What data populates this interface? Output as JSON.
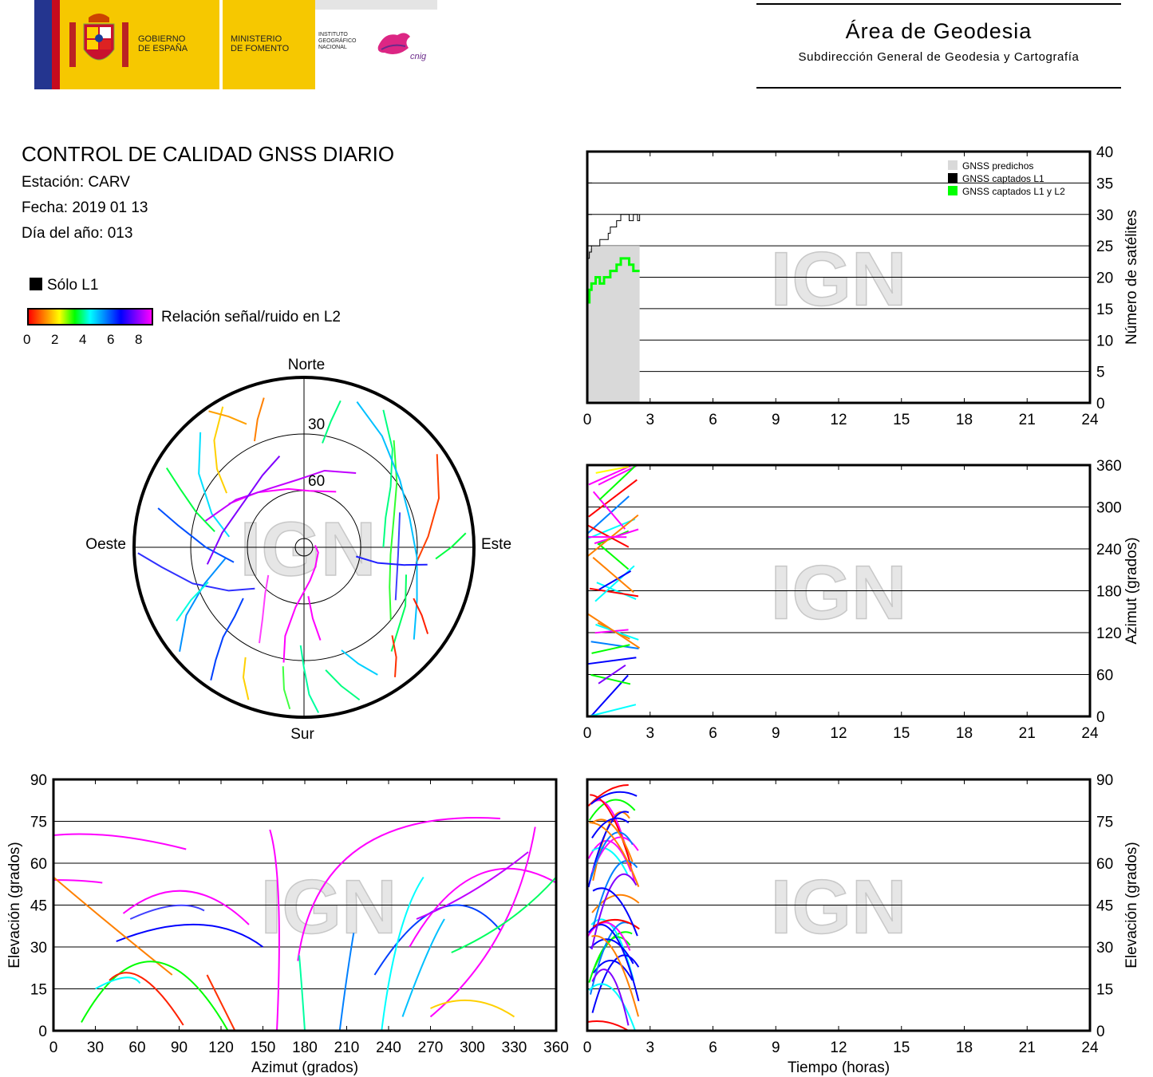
{
  "header": {
    "gobierno": [
      "GOBIERNO",
      "DE ESPAÑA"
    ],
    "ministerio": [
      "MINISTERIO",
      "DE FOMENTO"
    ],
    "instituto": [
      "INSTITUTO",
      "GEOGRÁFICO",
      "NACIONAL"
    ],
    "cnig": "cnig",
    "area_title": "Área de Geodesia",
    "area_subtitle": "Subdirección General de Geodesia y Cartografía"
  },
  "report": {
    "title": "CONTROL DE CALIDAD GNSS DIARIO",
    "station": "Estación: CARV",
    "date": "Fecha: 2019 01 13",
    "doy": "Día del año: 013",
    "legend_l1": "Sólo L1",
    "legend_snr": "Relación señal/ruido en L2",
    "snr_ticks": [
      "0",
      "2",
      "4",
      "6",
      "8"
    ]
  },
  "watermark": "IGN",
  "colors": {
    "predicted": "#d9d9d9",
    "l1": "#000000",
    "l1l2": "#00ff00",
    "snr_scale": [
      "#ff0000",
      "#ff8000",
      "#ffff00",
      "#00ff00",
      "#00ffff",
      "#0080ff",
      "#0000ff",
      "#8000ff",
      "#ff00ff"
    ]
  },
  "chart_data": [
    {
      "id": "satellites",
      "type": "area",
      "ylabel": "Número de satélites",
      "ylim": [
        0,
        40
      ],
      "yticks": [
        0,
        5,
        10,
        15,
        20,
        25,
        30,
        35,
        40
      ],
      "xlim": [
        0,
        24
      ],
      "xticks": [
        0,
        3,
        6,
        9,
        12,
        15,
        18,
        21,
        24
      ],
      "grid": true,
      "legend": "top-right",
      "series": [
        {
          "name": "GNSS predichos",
          "x": [
            0,
            0.3,
            0.6,
            1.0,
            1.4,
            1.8,
            2.2,
            2.5
          ],
          "values": [
            24,
            25,
            25,
            25,
            25,
            25,
            25,
            25
          ]
        },
        {
          "name": "GNSS captados L1",
          "x": [
            0,
            0.1,
            0.2,
            0.4,
            0.6,
            0.8,
            1.0,
            1.1,
            1.2,
            1.4,
            1.6,
            1.8,
            2.0,
            2.2,
            2.4,
            2.5
          ],
          "values": [
            23,
            24,
            25,
            25,
            26,
            26,
            27,
            28,
            28,
            29,
            30,
            30,
            29,
            30,
            29,
            30
          ]
        },
        {
          "name": "GNSS captados L1 y L2",
          "x": [
            0,
            0.1,
            0.2,
            0.4,
            0.6,
            0.8,
            1.0,
            1.1,
            1.2,
            1.4,
            1.6,
            1.8,
            2.0,
            2.2,
            2.4,
            2.5
          ],
          "values": [
            16,
            18,
            19,
            20,
            19,
            20,
            20,
            21,
            21,
            22,
            23,
            23,
            22,
            21,
            21,
            21
          ]
        }
      ]
    },
    {
      "id": "azimuth_time",
      "type": "scatter",
      "ylabel": "Azimut (grados)",
      "ylim": [
        0,
        360
      ],
      "yticks": [
        0,
        60,
        120,
        180,
        240,
        300,
        360
      ],
      "xlim": [
        0,
        24
      ],
      "xticks": [
        0,
        3,
        6,
        9,
        12,
        15,
        18,
        21,
        24
      ],
      "grid": true
    },
    {
      "id": "elevation_time",
      "type": "scatter",
      "ylabel": "Elevación (grados)",
      "ylim": [
        0,
        90
      ],
      "yticks": [
        0,
        15,
        30,
        45,
        60,
        75,
        90
      ],
      "xlim": [
        0,
        24
      ],
      "xlabel": "Tiempo (horas)",
      "xticks": [
        0,
        3,
        6,
        9,
        12,
        15,
        18,
        21,
        24
      ],
      "grid": true
    },
    {
      "id": "elevation_azimuth",
      "type": "scatter",
      "ylabel": "Elevación (grados)",
      "xlabel": "Azimut (grados)",
      "ylim": [
        0,
        90
      ],
      "yticks": [
        0,
        15,
        30,
        45,
        60,
        75,
        90
      ],
      "xlim": [
        0,
        360
      ],
      "xticks": [
        0,
        30,
        60,
        90,
        120,
        150,
        180,
        210,
        240,
        270,
        300,
        330,
        360
      ],
      "grid": true
    },
    {
      "id": "skyplot",
      "type": "scatter",
      "labels": {
        "north": "Norte",
        "south": "Sur",
        "east": "Este",
        "west": "Oeste"
      },
      "rings": [
        "30",
        "60"
      ],
      "tracks": [
        {
          "pts": [
            [
              345,
              8
            ],
            [
              340,
              18
            ],
            [
              335,
              28
            ]
          ],
          "c": "#ff8000"
        },
        {
          "pts": [
            [
              330,
              4
            ],
            [
              320,
              16
            ],
            [
              312,
              28
            ],
            [
              305,
              40
            ]
          ],
          "c": "#ffd000"
        },
        {
          "pts": [
            [
              318,
              8
            ],
            [
              305,
              22
            ],
            [
              290,
              38
            ],
            [
              278,
              50
            ]
          ],
          "c": "#00e0ff"
        },
        {
          "pts": [
            [
              300,
              6
            ],
            [
              295,
              18
            ],
            [
              288,
              30
            ],
            [
              280,
              42
            ]
          ],
          "c": "#00ff40"
        },
        {
          "pts": [
            [
              285,
              10
            ],
            [
              280,
              22
            ],
            [
              270,
              38
            ],
            [
              258,
              52
            ]
          ],
          "c": "#0050ff"
        },
        {
          "pts": [
            [
              230,
              4
            ],
            [
              240,
              18
            ],
            [
              250,
              34
            ],
            [
              262,
              48
            ]
          ],
          "c": "#0090ff"
        },
        {
          "pts": [
            [
              268,
              2
            ],
            [
              262,
              14
            ],
            [
              252,
              28
            ],
            [
              240,
              44
            ],
            [
              230,
              56
            ]
          ],
          "c": "#3030ff"
        },
        {
          "pts": [
            [
              300,
              44
            ],
            [
              320,
              52
            ],
            [
              345,
              58
            ],
            [
              5,
              60
            ],
            [
              30,
              56
            ]
          ],
          "c": "#ff00ff"
        },
        {
          "pts": [
            [
              285,
              36
            ],
            [
              305,
              46
            ],
            [
              330,
              54
            ],
            [
              355,
              54
            ],
            [
              15,
              48
            ],
            [
              35,
              42
            ]
          ],
          "c": "#c000ff"
        },
        {
          "pts": [
            [
              260,
              38
            ],
            [
              280,
              46
            ],
            [
              310,
              50
            ],
            [
              330,
              46
            ],
            [
              345,
              40
            ]
          ],
          "c": "#8000ff"
        },
        {
          "pts": [
            [
              30,
              6
            ],
            [
              42,
              20
            ],
            [
              55,
              34
            ],
            [
              70,
              44
            ],
            [
              90,
              48
            ]
          ],
          "c": "#00ff80"
        },
        {
          "pts": [
            [
              55,
              4
            ],
            [
              70,
              14
            ],
            [
              85,
              24
            ],
            [
              98,
              30
            ]
          ],
          "c": "#ff4000"
        },
        {
          "pts": [
            [
              40,
              16
            ],
            [
              55,
              30
            ],
            [
              72,
              40
            ],
            [
              95,
              44
            ],
            [
              115,
              40
            ],
            [
              130,
              30
            ]
          ],
          "c": "#30ff30"
        },
        {
          "pts": [
            [
              20,
              8
            ],
            [
              35,
              18
            ],
            [
              55,
              28
            ],
            [
              75,
              32
            ],
            [
              95,
              30
            ],
            [
              115,
              24
            ],
            [
              130,
              14
            ]
          ],
          "c": "#00c0ff"
        },
        {
          "pts": [
            [
              70,
              36
            ],
            [
              95,
              40
            ],
            [
              120,
              34
            ]
          ],
          "c": "#4040ff"
        },
        {
          "pts": [
            [
              105,
              34
            ],
            [
              120,
              28
            ],
            [
              140,
              18
            ]
          ],
          "c": "#00ff60"
        },
        {
          "pts": [
            [
              160,
              4
            ],
            [
              165,
              14
            ],
            [
              170,
              24
            ]
          ],
          "c": "#00ff80"
        },
        {
          "pts": [
            [
              175,
              2
            ],
            [
              178,
              12
            ],
            [
              180,
              26
            ],
            [
              182,
              38
            ]
          ],
          "c": "#00ffa0"
        },
        {
          "pts": [
            [
              185,
              4
            ],
            [
              188,
              14
            ],
            [
              190,
              26
            ]
          ],
          "c": "#40ff40"
        },
        {
          "pts": [
            [
              190,
              28
            ],
            [
              192,
              42
            ],
            [
              188,
              58
            ],
            [
              170,
              72
            ],
            [
              150,
              78
            ],
            [
              110,
              82
            ],
            [
              80,
              84
            ]
          ],
          "c": "#ff00ff"
        },
        {
          "pts": [
            [
              200,
              4
            ],
            [
              205,
              14
            ],
            [
              208,
              24
            ]
          ],
          "c": "#ffd000"
        },
        {
          "pts": [
            [
              215,
              4
            ],
            [
              218,
              14
            ],
            [
              222,
              26
            ],
            [
              225,
              38
            ],
            [
              230,
              48
            ]
          ],
          "c": "#0040ff"
        },
        {
          "pts": [
            [
              145,
              6
            ],
            [
              140,
              14
            ],
            [
              135,
              24
            ]
          ],
          "c": "#ff3000"
        },
        {
          "pts": [
            [
              205,
              34
            ],
            [
              210,
              46
            ],
            [
              220,
              58
            ],
            [
              232,
              66
            ]
          ],
          "c": "#ff40ff"
        },
        {
          "pts": [
            [
              170,
              40
            ],
            [
              173,
              52
            ],
            [
              175,
              64
            ]
          ],
          "c": "#ff00ff"
        },
        {
          "pts": [
            [
              150,
              12
            ],
            [
              155,
              22
            ],
            [
              160,
              32
            ]
          ],
          "c": "#00d0ff"
        },
        {
          "pts": [
            [
              240,
              12
            ],
            [
              245,
              24
            ],
            [
              250,
              36
            ]
          ],
          "c": "#00ffe0"
        },
        {
          "pts": [
            [
              325,
              2
            ],
            [
              330,
              10
            ],
            [
              335,
              18
            ]
          ],
          "c": "#ffa000"
        },
        {
          "pts": [
            [
              85,
              4
            ],
            [
              90,
              12
            ],
            [
              95,
              20
            ]
          ],
          "c": "#00ff40"
        },
        {
          "pts": [
            [
              125,
              10
            ],
            [
              120,
              18
            ],
            [
              115,
              26
            ]
          ],
          "c": "#ff2000"
        },
        {
          "pts": [
            [
              14,
              10
            ],
            [
              12,
              22
            ],
            [
              10,
              34
            ]
          ],
          "c": "#00ff80"
        },
        {
          "pts": [
            [
              98,
              24
            ],
            [
              100,
              36
            ],
            [
              102,
              50
            ],
            [
              100,
              62
            ]
          ],
          "c": "#2020ff"
        }
      ]
    }
  ]
}
